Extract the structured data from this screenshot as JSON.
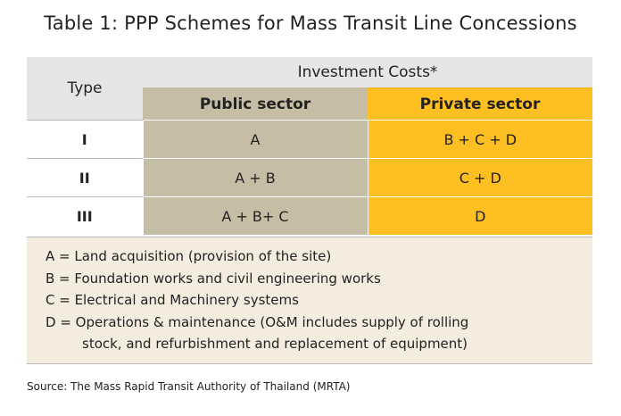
{
  "title": "Table 1: PPP Schemes for Mass Transit Line Concessions",
  "table": {
    "type_header": "Type",
    "investment_header": "Investment Costs*",
    "public_header": "Public sector",
    "private_header": "Private sector",
    "rows": [
      {
        "type": "I",
        "public": "A",
        "private": "B + C + D"
      },
      {
        "type": "II",
        "public": "A + B",
        "private": "C + D"
      },
      {
        "type": "III",
        "public": "A + B+ C",
        "private": "D"
      }
    ]
  },
  "legend": {
    "items": [
      "A = Land acquisition (provision of the site)",
      "B = Foundation  works and civil engineering works",
      "C = Electrical and Machinery systems",
      "D = Operations & maintenance (O&M includes supply of rolling"
    ],
    "continuation": "stock, and refurbishment and replacement of equipment)"
  },
  "source": "Source: The Mass Rapid Transit Authority of Thailand (MRTA)",
  "colors": {
    "public_sector": "#c6bea4",
    "private_sector": "#fdbf22",
    "header_grey": "#e6e6e6",
    "legend_bg": "#f5ece0"
  }
}
